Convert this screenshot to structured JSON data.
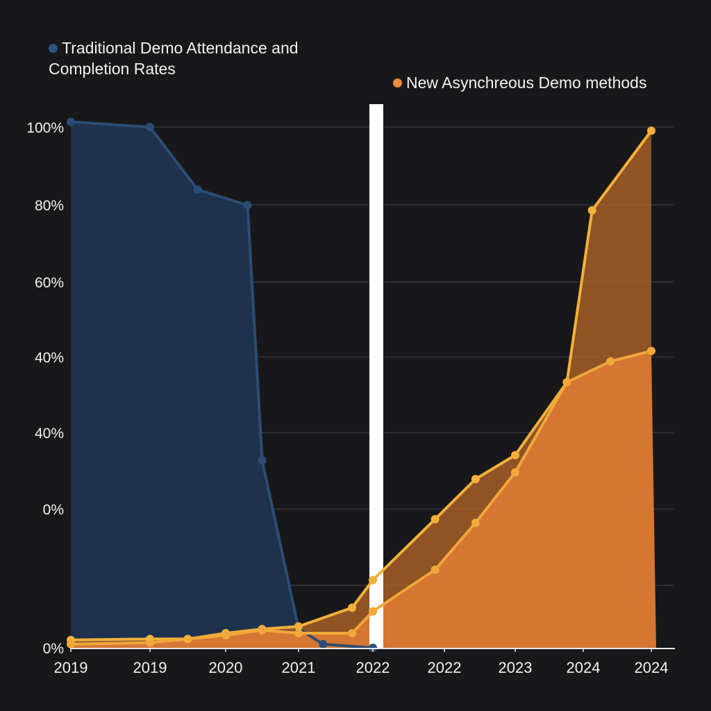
{
  "chart_data": {
    "type": "area",
    "title": "",
    "xlabel": "",
    "ylabel": "",
    "x_tick_labels": [
      "2019",
      "2019",
      "2020",
      "2021",
      "2022",
      "2022",
      "2023",
      "2024",
      "2024"
    ],
    "y_tick_labels": [
      "100%",
      "80%",
      "60%",
      "40%",
      "40%",
      "0%",
      "",
      "0%"
    ],
    "ylim": [
      0,
      100
    ],
    "grid": true,
    "legend": [
      {
        "name": "Traditional Demo Attendance and Completion Rates",
        "color": "#2b5480",
        "placement": "top-left"
      },
      {
        "name": "New Asynchreous Demo methods",
        "color": "#ee8a3a",
        "placement": "top-right"
      }
    ],
    "series": [
      {
        "name": "Traditional Demo Attendance and Completion Rates",
        "color": "#2b4d75",
        "fill": "#1f3350",
        "x": [
          0,
          1,
          1.63,
          2.3,
          2.5,
          3,
          3.33,
          4
        ],
        "values": [
          101,
          100,
          88,
          85,
          36,
          3.7,
          0.7,
          0
        ]
      },
      {
        "color": "#f2b13c",
        "x": [
          0,
          1,
          1.5,
          2,
          2.5,
          3,
          3.72,
          4,
          4.87,
          5.44,
          6,
          6.76,
          7.13,
          8
        ],
        "values": [
          1.5,
          1.7,
          1.7,
          2.8,
          3.6,
          4.1,
          7.7,
          13,
          24.7,
          32.4,
          37,
          51,
          84,
          99.3
        ]
      },
      {
        "color": "#f0a83a",
        "fill": "#e07b35",
        "x": [
          0,
          1,
          2,
          2.5,
          3,
          3.72,
          4,
          4.87,
          5.44,
          6,
          6.76,
          7.4,
          8
        ],
        "values": [
          0.7,
          1.0,
          2.4,
          3.4,
          2.8,
          2.8,
          7,
          15,
          24,
          33.7,
          51,
          55,
          57
        ]
      }
    ],
    "annotations": [
      {
        "type": "vertical-line",
        "x": 4,
        "color": "#ffffff"
      }
    ]
  }
}
